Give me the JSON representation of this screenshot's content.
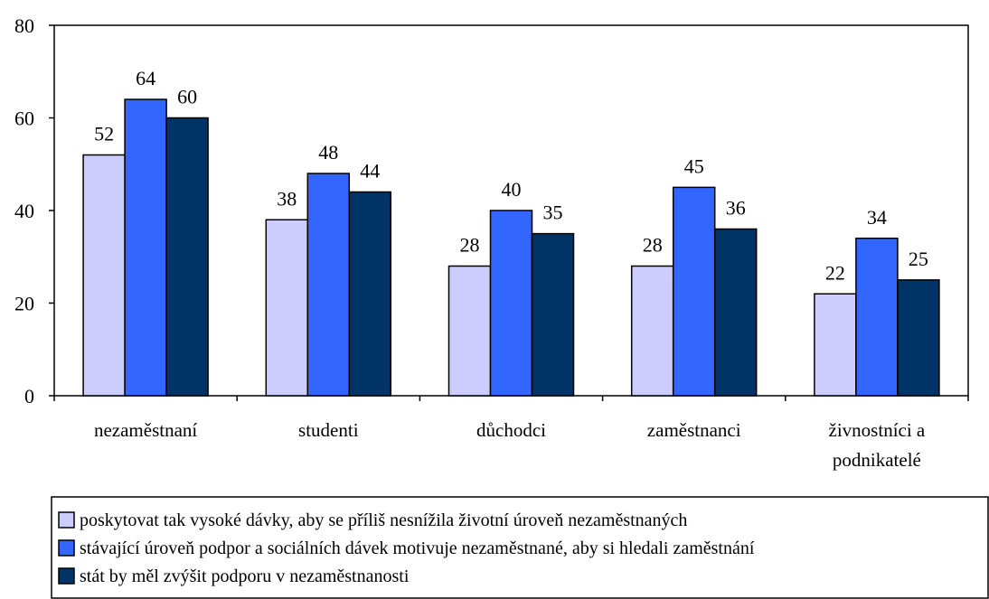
{
  "chart_data": {
    "type": "bar",
    "title": "",
    "xlabel": "",
    "ylabel": "",
    "ylim": [
      0,
      80
    ],
    "yticks": [
      0,
      20,
      40,
      60,
      80
    ],
    "grid": false,
    "legend_position": "bottom",
    "categories": [
      [
        "nezaměstnaní"
      ],
      [
        "studenti"
      ],
      [
        "důchodci"
      ],
      [
        "zaměstnanci"
      ],
      [
        "živnostníci a",
        "podnikatelé"
      ]
    ],
    "series": [
      {
        "name": "poskytovat tak vysoké dávky, aby se příliš nesnížila životní úroveň nezaměstnaných",
        "color": "#ccccff",
        "values": [
          52,
          38,
          28,
          28,
          22
        ]
      },
      {
        "name": "stávající úroveň podpor a sociálních dávek motivuje nezaměstnané, aby si hledali zaměstnání",
        "color": "#3366ff",
        "values": [
          64,
          48,
          40,
          45,
          34
        ]
      },
      {
        "name": "stát by měl zvýšit podporu v nezaměstnanosti",
        "color": "#003366",
        "values": [
          60,
          44,
          35,
          36,
          25
        ]
      }
    ]
  }
}
